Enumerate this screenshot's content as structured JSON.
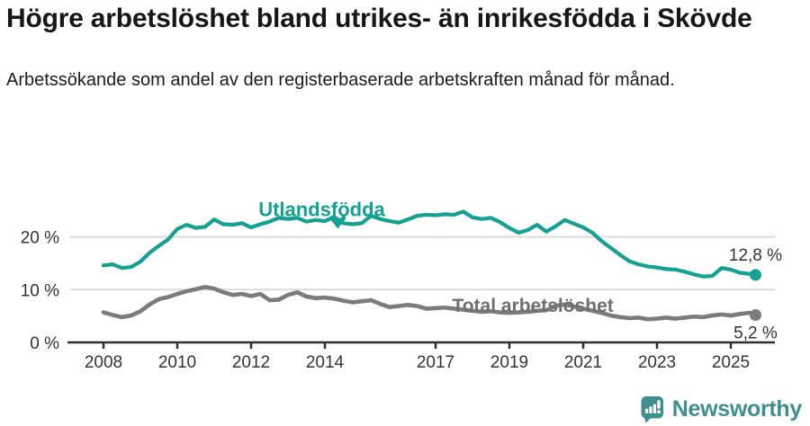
{
  "chart_data": {
    "type": "line",
    "title": "Högre arbetslöshet bland utrikes- än inrikesfödda i Skövde",
    "subtitle": "Arbetssökande som andel av den registerbaserade arbetskraften månad för månad.",
    "ylabel": "",
    "xlabel": "",
    "unit": "%",
    "ylim": [
      0,
      27
    ],
    "xlim": [
      2007.3,
      2026.2
    ],
    "grid": "horizontal",
    "legend_position": "inline-labels",
    "x": [
      2008,
      2008.25,
      2008.5,
      2008.75,
      2009,
      2009.25,
      2009.5,
      2009.75,
      2010,
      2010.25,
      2010.5,
      2010.75,
      2011,
      2011.25,
      2011.5,
      2011.75,
      2012,
      2012.25,
      2012.5,
      2012.75,
      2013,
      2013.25,
      2013.5,
      2013.75,
      2014,
      2014.25,
      2014.5,
      2014.75,
      2015,
      2015.25,
      2015.5,
      2015.75,
      2016,
      2016.25,
      2016.5,
      2016.75,
      2017,
      2017.25,
      2017.5,
      2017.75,
      2018,
      2018.25,
      2018.5,
      2018.75,
      2019,
      2019.25,
      2019.5,
      2019.75,
      2020,
      2020.25,
      2020.5,
      2020.75,
      2021,
      2021.25,
      2021.5,
      2021.75,
      2022,
      2022.25,
      2022.5,
      2022.75,
      2023,
      2023.25,
      2023.5,
      2023.75,
      2024,
      2024.25,
      2024.5,
      2024.75,
      2025,
      2025.25,
      2025.5,
      2025.67
    ],
    "series": [
      {
        "name": "Utlandsfödda",
        "color": "#12a192",
        "line_width": 4.2,
        "end_label": "12,8 %",
        "end_label_position": "above",
        "values": [
          14.6,
          14.8,
          14.1,
          14.3,
          15.3,
          17.0,
          18.3,
          19.5,
          21.5,
          22.3,
          21.7,
          21.9,
          23.3,
          22.4,
          22.3,
          22.6,
          21.8,
          22.4,
          22.9,
          23.6,
          23.4,
          23.6,
          22.9,
          23.2,
          23.0,
          23.8,
          22.6,
          22.4,
          22.6,
          24.0,
          23.4,
          23.0,
          22.7,
          23.3,
          24.0,
          24.2,
          24.1,
          24.3,
          24.2,
          24.8,
          23.7,
          23.4,
          23.6,
          22.8,
          21.7,
          20.8,
          21.3,
          22.3,
          21.0,
          22.0,
          23.2,
          22.5,
          21.8,
          20.8,
          19.2,
          17.9,
          16.6,
          15.4,
          14.8,
          14.4,
          14.2,
          13.9,
          13.8,
          13.4,
          12.9,
          12.5,
          12.6,
          14.1,
          13.8,
          13.2,
          13.0,
          12.8
        ]
      },
      {
        "name": "Total arbetslöshet",
        "color": "#7b7b7b",
        "line_width": 4.6,
        "end_label": "5,2 %",
        "end_label_position": "below",
        "values": [
          5.7,
          5.2,
          4.8,
          5.1,
          5.9,
          7.2,
          8.2,
          8.6,
          9.2,
          9.7,
          10.1,
          10.5,
          10.2,
          9.5,
          9.0,
          9.2,
          8.8,
          9.2,
          8.0,
          8.1,
          9.0,
          9.5,
          8.7,
          8.4,
          8.5,
          8.3,
          7.9,
          7.6,
          7.8,
          8.0,
          7.3,
          6.7,
          6.9,
          7.1,
          6.9,
          6.4,
          6.5,
          6.6,
          6.4,
          6.2,
          6.0,
          5.8,
          5.9,
          5.7,
          5.6,
          5.7,
          5.8,
          6.0,
          6.1,
          6.9,
          7.2,
          6.8,
          6.4,
          6.0,
          5.6,
          5.1,
          4.8,
          4.6,
          4.7,
          4.4,
          4.5,
          4.7,
          4.5,
          4.7,
          4.9,
          4.8,
          5.1,
          5.3,
          5.1,
          5.4,
          5.6,
          5.2
        ]
      }
    ],
    "yticks": [
      {
        "value": 0,
        "label": "0 %"
      },
      {
        "value": 10,
        "label": "10 %"
      },
      {
        "value": 20,
        "label": "20 %"
      }
    ],
    "xticks": [
      {
        "value": 2008,
        "label": "2008"
      },
      {
        "value": 2010,
        "label": "2010"
      },
      {
        "value": 2012,
        "label": "2012"
      },
      {
        "value": 2014,
        "label": "2014"
      },
      {
        "value": 2017,
        "label": "2017"
      },
      {
        "value": 2019,
        "label": "2019"
      },
      {
        "value": 2021,
        "label": "2021"
      },
      {
        "value": 2023,
        "label": "2023"
      },
      {
        "value": 2025,
        "label": "2025"
      }
    ],
    "annotations": [
      {
        "text": "Utlandsfödda",
        "x": 2012.2,
        "y": 23.95,
        "color": "#12a192",
        "font_size": 22,
        "arrow": {
          "x": 2014.35,
          "v": 22.25
        }
      },
      {
        "text": "Total arbetslöshet",
        "x": 2017.45,
        "y": 5.75,
        "color": "#6e6e6e",
        "font_size": 21
      }
    ],
    "style": {
      "grid_color": "#dcdcdc",
      "axis_color": "#2e2e2e",
      "tick_label_color": "#333333"
    }
  },
  "icons": {
    "logo": "newsworthy-speech-bubble-chart-icon"
  },
  "footer": {
    "brand": "Newsworthy",
    "brand_color": "#3e8f8d"
  }
}
